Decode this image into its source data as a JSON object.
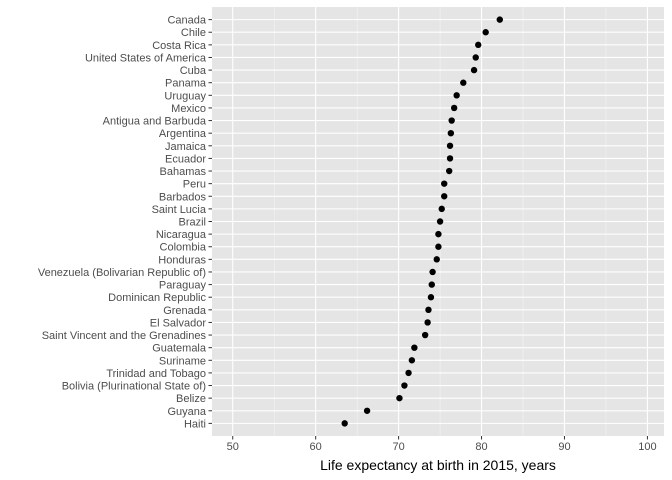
{
  "chart_data": {
    "type": "scatter",
    "title": "",
    "xlabel": "Life expectancy at birth in 2015, years",
    "ylabel": "",
    "xlim": [
      47.5,
      102
    ],
    "xticks": [
      50,
      60,
      70,
      80,
      90,
      100
    ],
    "grid": true,
    "legend": "none",
    "colors": {
      "panel": "#e5e5e5",
      "grid_major": "#ffffff",
      "point": "#000000",
      "tick_label": "#4d4d4d"
    },
    "points": [
      {
        "country": "Canada",
        "value": 82.2
      },
      {
        "country": "Chile",
        "value": 80.5
      },
      {
        "country": "Costa Rica",
        "value": 79.6
      },
      {
        "country": "United States of America",
        "value": 79.3
      },
      {
        "country": "Cuba",
        "value": 79.1
      },
      {
        "country": "Panama",
        "value": 77.8
      },
      {
        "country": "Uruguay",
        "value": 77.0
      },
      {
        "country": "Mexico",
        "value": 76.7
      },
      {
        "country": "Antigua and Barbuda",
        "value": 76.4
      },
      {
        "country": "Argentina",
        "value": 76.3
      },
      {
        "country": "Jamaica",
        "value": 76.2
      },
      {
        "country": "Ecuador",
        "value": 76.2
      },
      {
        "country": "Bahamas",
        "value": 76.1
      },
      {
        "country": "Peru",
        "value": 75.5
      },
      {
        "country": "Barbados",
        "value": 75.5
      },
      {
        "country": "Saint Lucia",
        "value": 75.2
      },
      {
        "country": "Brazil",
        "value": 75.0
      },
      {
        "country": "Nicaragua",
        "value": 74.8
      },
      {
        "country": "Colombia",
        "value": 74.8
      },
      {
        "country": "Honduras",
        "value": 74.6
      },
      {
        "country": "Venezuela (Bolivarian Republic of)",
        "value": 74.1
      },
      {
        "country": "Paraguay",
        "value": 74.0
      },
      {
        "country": "Dominican Republic",
        "value": 73.9
      },
      {
        "country": "Grenada",
        "value": 73.6
      },
      {
        "country": "El Salvador",
        "value": 73.5
      },
      {
        "country": "Saint Vincent and the Grenadines",
        "value": 73.2
      },
      {
        "country": "Guatemala",
        "value": 71.9
      },
      {
        "country": "Suriname",
        "value": 71.6
      },
      {
        "country": "Trinidad and Tobago",
        "value": 71.2
      },
      {
        "country": "Bolivia (Plurinational State of)",
        "value": 70.7
      },
      {
        "country": "Belize",
        "value": 70.1
      },
      {
        "country": "Guyana",
        "value": 66.2
      },
      {
        "country": "Haiti",
        "value": 63.5
      }
    ]
  }
}
